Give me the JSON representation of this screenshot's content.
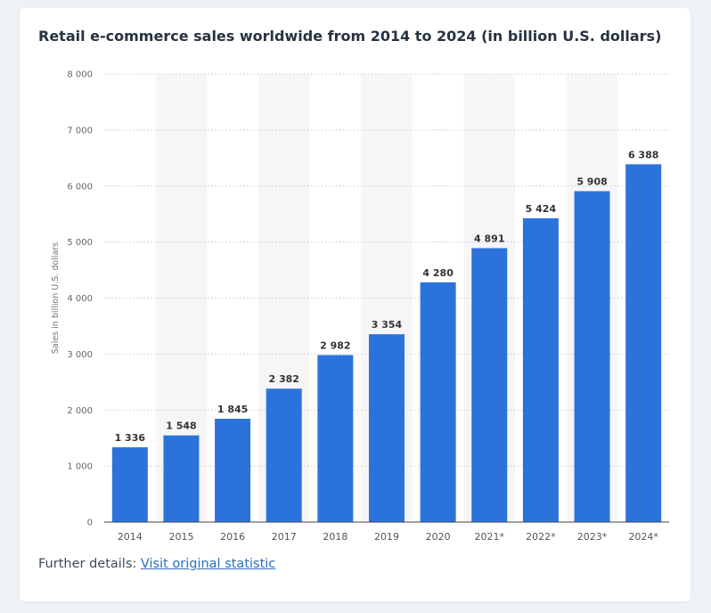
{
  "footer": {
    "prefix": "Further details:",
    "link_text": "Visit original statistic"
  },
  "colors": {
    "bar": "#2b73db",
    "band": "#f6f6f8",
    "grid": "#c9c9c9",
    "axis": "#444444"
  },
  "chart_data": {
    "type": "bar",
    "title": "Retail e-commerce sales worldwide from 2014 to 2024 (in billion U.S. dollars)",
    "xlabel": "",
    "ylabel": "Sales in billion U.S. dollars",
    "categories": [
      "2014",
      "2015",
      "2016",
      "2017",
      "2018",
      "2019",
      "2020",
      "2021*",
      "2022*",
      "2023*",
      "2024*"
    ],
    "values": [
      1336,
      1548,
      1845,
      2382,
      2982,
      3354,
      4280,
      4891,
      5424,
      5908,
      6388
    ],
    "value_labels": [
      "1 336",
      "1 548",
      "1 845",
      "2 382",
      "2 982",
      "3 354",
      "4 280",
      "4 891",
      "5 424",
      "5 908",
      "6 388"
    ],
    "ylim": [
      0,
      8000
    ],
    "yticks": [
      0,
      1000,
      2000,
      3000,
      4000,
      5000,
      6000,
      7000,
      8000
    ],
    "ytick_labels": [
      "0",
      "1 000",
      "2 000",
      "3 000",
      "4 000",
      "5 000",
      "6 000",
      "7 000",
      "8 000"
    ],
    "grid": true,
    "legend": "none"
  }
}
